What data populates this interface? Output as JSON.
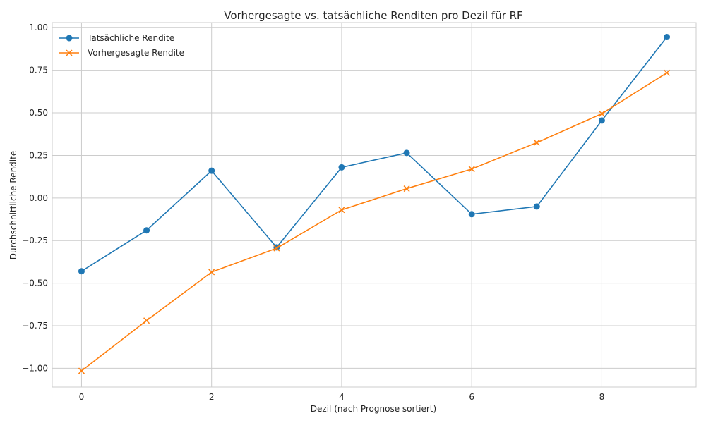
{
  "chart_data": {
    "type": "line",
    "title": "Vorhergesagte vs. tatsächliche Renditen pro Dezil für RF",
    "xlabel": "Dezil (nach Prognose sortiert)",
    "ylabel": "Durchschnittliche Rendite",
    "x": [
      0,
      1,
      2,
      3,
      4,
      5,
      6,
      7,
      8,
      9
    ],
    "xlim": [
      -0.45,
      9.45
    ],
    "ylim": [
      -1.11,
      1.03
    ],
    "xticks": [
      0,
      2,
      4,
      6,
      8
    ],
    "xtick_labels": [
      "0",
      "2",
      "4",
      "6",
      "8"
    ],
    "yticks": [
      1.0,
      0.75,
      0.5,
      0.25,
      0.0,
      -0.25,
      -0.5,
      -0.75,
      -1.0
    ],
    "ytick_labels": [
      "1.00",
      "0.75",
      "0.50",
      "0.25",
      "0.00",
      "−0.25",
      "−0.50",
      "−0.75",
      "−1.00"
    ],
    "grid": true,
    "legend_position": "top-left",
    "series": [
      {
        "name": "Tatsächliche Rendite",
        "marker": "circle",
        "color": "#1f77b4",
        "values": [
          -0.43,
          -0.19,
          0.16,
          -0.29,
          0.18,
          0.265,
          -0.095,
          -0.05,
          0.455,
          0.945
        ]
      },
      {
        "name": "Vorhergesagte Rendite",
        "marker": "x",
        "color": "#ff7f0e",
        "values": [
          -1.015,
          -0.72,
          -0.435,
          -0.295,
          -0.07,
          0.055,
          0.17,
          0.325,
          0.495,
          0.735
        ]
      }
    ]
  }
}
